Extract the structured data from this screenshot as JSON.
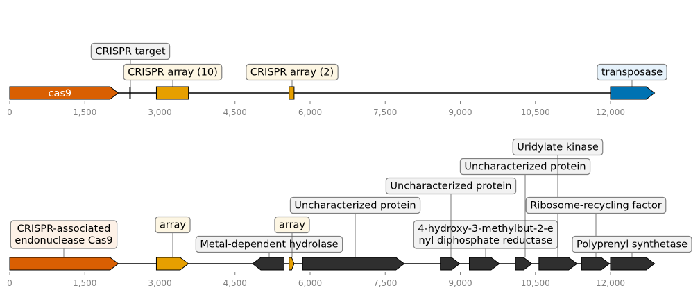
{
  "colors": {
    "cas9": "#d95f02",
    "array": "#e69f00",
    "transposase": "#0072b2",
    "target": "#000000",
    "other": "#2f2f2f",
    "label_cas": "#fdf1e7",
    "label_array": "#fdf6e3",
    "label_target": "#f2f2f2",
    "label_transposase": "#e6f2fb",
    "label_other": "#f2f2f2"
  },
  "tracks": [
    {
      "name": "top",
      "axis_ticks": [
        "0",
        "1,500",
        "3,000",
        "4,500",
        "6,000",
        "7,500",
        "9,000",
        "10,500",
        "12,000"
      ],
      "features": [
        {
          "name": "cas9",
          "start": 0,
          "end": 2170,
          "strand": 1,
          "color": "cas9",
          "inner_label": "cas9"
        },
        {
          "name": "CRISPR target",
          "start": 2390,
          "end": 2410,
          "strand": 0,
          "color": "target",
          "label": "CRISPR target",
          "label_color": "label_target"
        },
        {
          "name": "CRISPR array (10)",
          "start": 2930,
          "end": 3570,
          "strand": 0,
          "color": "array",
          "label": "CRISPR array (10)",
          "label_color": "label_array"
        },
        {
          "name": "CRISPR array (2)",
          "start": 5580,
          "end": 5680,
          "strand": 0,
          "color": "array",
          "label": "CRISPR array (2)",
          "label_color": "label_array"
        },
        {
          "name": "transposase",
          "start": 12000,
          "end": 12880,
          "strand": 1,
          "color": "transposase",
          "label": "transposase",
          "label_color": "label_transposase"
        }
      ]
    },
    {
      "name": "bottom",
      "axis_ticks": [
        "0",
        "1,500",
        "3,000",
        "4,500",
        "6,000",
        "7,500",
        "9,000",
        "10,500",
        "12,000"
      ],
      "features": [
        {
          "name": "CRISPR-associated endonuclease Cas9",
          "start": 0,
          "end": 2170,
          "strand": 1,
          "color": "cas9",
          "label": [
            "CRISPR-associated",
            "endonuclease Cas9"
          ],
          "label_color": "label_cas"
        },
        {
          "name": "array",
          "start": 2930,
          "end": 3570,
          "strand": 1,
          "color": "array",
          "label": "array",
          "label_color": "label_array"
        },
        {
          "name": "Metal-dependent hydrolase",
          "start": 4850,
          "end": 5480,
          "strand": -1,
          "color": "other",
          "label": "Metal-dependent hydrolase",
          "label_color": "label_other"
        },
        {
          "name": "array 2",
          "start": 5580,
          "end": 5680,
          "strand": 1,
          "color": "array",
          "label": "array",
          "label_color": "label_array"
        },
        {
          "name": "Uncharacterized protein 1",
          "start": 5850,
          "end": 7880,
          "strand": 1,
          "color": "other",
          "label": "Uncharacterized protein",
          "label_color": "label_other"
        },
        {
          "name": "4-hydroxy-3-methylbut-2-enyl diphosphate reductase",
          "start": 8600,
          "end": 8990,
          "strand": 1,
          "color": "other",
          "label": [
            "4-hydroxy-3-methylbut-2-e",
            "nyl diphosphate reductase"
          ],
          "label_color": "label_other"
        },
        {
          "name": "Uncharacterized protein 2",
          "start": 9180,
          "end": 9780,
          "strand": 1,
          "color": "other",
          "label": "Uncharacterized protein",
          "label_color": "label_other"
        },
        {
          "name": "Uncharacterized protein 3",
          "start": 10100,
          "end": 10430,
          "strand": 1,
          "color": "other",
          "label": "Uncharacterized protein",
          "label_color": "label_other"
        },
        {
          "name": "Uridylate kinase",
          "start": 10570,
          "end": 11330,
          "strand": 1,
          "color": "other",
          "label": "Uridylate kinase",
          "label_color": "label_other"
        },
        {
          "name": "Ribosome-recycling factor",
          "start": 11420,
          "end": 11980,
          "strand": 1,
          "color": "other",
          "label": "Ribosome-recycling factor",
          "label_color": "label_other"
        },
        {
          "name": "Polyprenyl synthetase",
          "start": 12000,
          "end": 12880,
          "strand": 1,
          "color": "other",
          "label": "Polyprenyl synthetase",
          "label_color": "label_other"
        }
      ]
    }
  ]
}
